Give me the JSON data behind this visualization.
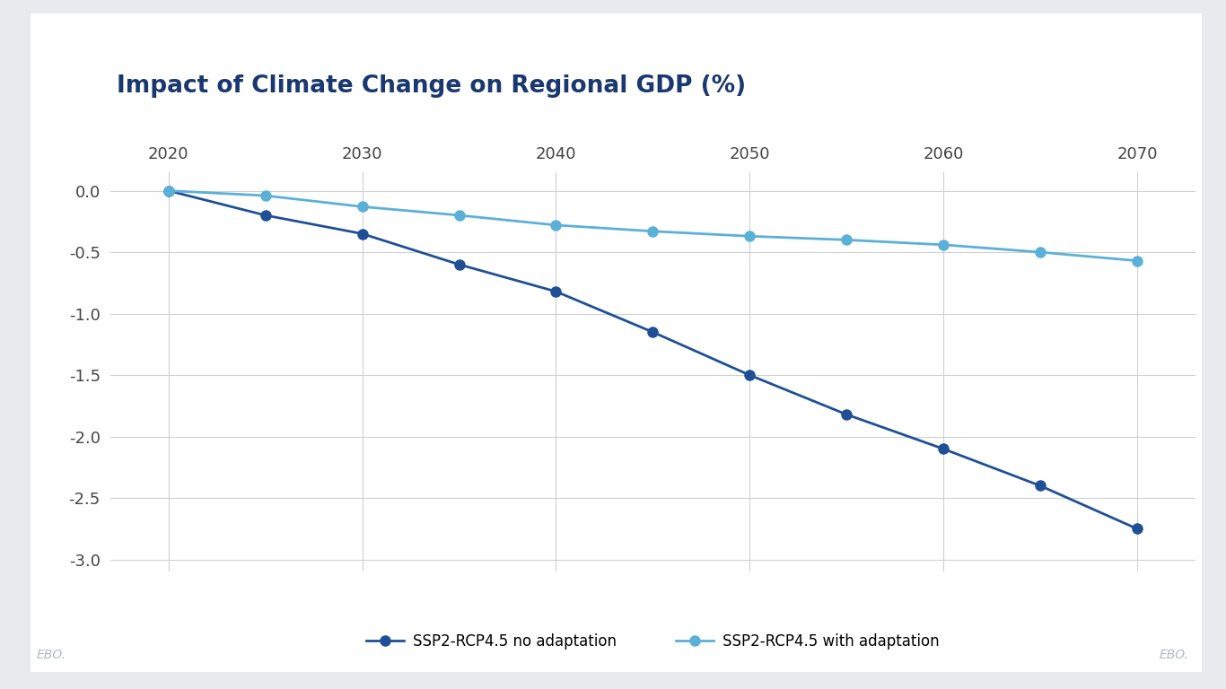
{
  "title": "Impact of Climate Change on Regional GDP (%)",
  "x_values": [
    2020,
    2025,
    2030,
    2035,
    2040,
    2045,
    2050,
    2055,
    2060,
    2065,
    2070
  ],
  "no_adaptation": [
    0.0,
    -0.2,
    -0.35,
    -0.6,
    -0.82,
    -1.15,
    -1.5,
    -1.82,
    -2.1,
    -2.4,
    -2.75
  ],
  "with_adaptation": [
    0.0,
    -0.04,
    -0.13,
    -0.2,
    -0.28,
    -0.33,
    -0.37,
    -0.4,
    -0.44,
    -0.5,
    -0.57
  ],
  "no_adaptation_color": "#1f5096",
  "with_adaptation_color": "#5bb0d8",
  "legend_no_adaptation": "SSP2-RCP4.5 no adaptation",
  "legend_with_adaptation": "SSP2-RCP4.5 with adaptation",
  "ylim": [
    -3.1,
    0.15
  ],
  "yticks": [
    0.0,
    -0.5,
    -1.0,
    -1.5,
    -2.0,
    -2.5,
    -3.0
  ],
  "xlim": [
    2017,
    2073
  ],
  "xticks": [
    2020,
    2030,
    2040,
    2050,
    2060,
    2070
  ],
  "outer_bg_color": "#e8eaed",
  "card_bg_color": "#ffffff",
  "title_color": "#1a3870",
  "title_fontsize": 19,
  "axis_fontsize": 13,
  "legend_fontsize": 12,
  "watermark_text": "EBO.",
  "grid_color": "#d0d0d0",
  "marker_size": 8
}
